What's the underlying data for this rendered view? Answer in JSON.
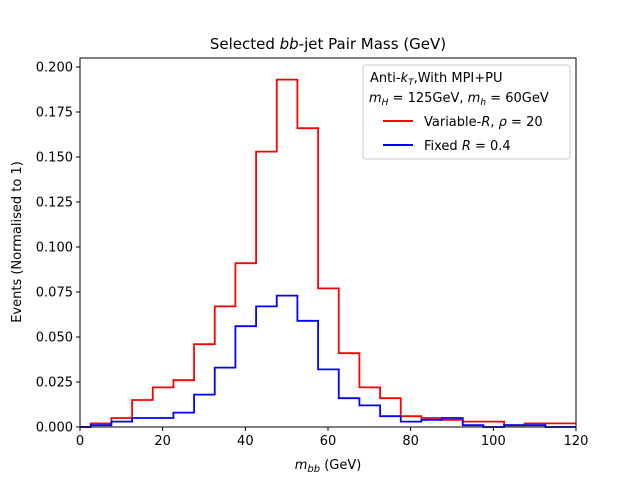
{
  "chart_data": {
    "type": "line",
    "style": "step-histogram",
    "title_parts": [
      "Selected ",
      "bb",
      "-jet Pair Mass (GeV)"
    ],
    "xlabel_parts": [
      "m",
      "bb",
      " (GeV)"
    ],
    "ylabel": "Events (Normalised to 1)",
    "xlim": [
      0,
      120
    ],
    "ylim": [
      0,
      0.205
    ],
    "x_ticks": [
      0,
      20,
      40,
      60,
      80,
      100,
      120
    ],
    "x_tick_labels": [
      "0",
      "20",
      "40",
      "60",
      "80",
      "100",
      "120"
    ],
    "y_ticks": [
      0,
      0.025,
      0.05,
      0.075,
      0.1,
      0.125,
      0.15,
      0.175,
      0.2
    ],
    "y_tick_labels": [
      "0.000",
      "0.025",
      "0.050",
      "0.075",
      "0.100",
      "0.125",
      "0.150",
      "0.175",
      "0.200"
    ],
    "grid": false,
    "legend": {
      "position": "top-right",
      "header_line1": [
        "Anti-",
        "k",
        "T",
        ",With MPI+PU"
      ],
      "header_line2": [
        "m",
        "H",
        " = 125GeV, ",
        "m",
        "h",
        " = 60GeV"
      ],
      "entries": [
        {
          "series": 0,
          "label_parts": [
            "Variable-",
            "R",
            ", ",
            "ρ",
            " = 20"
          ]
        },
        {
          "series": 1,
          "label_parts": [
            "Fixed ",
            "R",
            " = 0.4"
          ]
        }
      ]
    },
    "bin_edges": [
      0,
      2.6,
      7.6,
      12.6,
      17.6,
      22.6,
      27.6,
      32.6,
      37.6,
      42.6,
      47.6,
      52.6,
      57.6,
      62.6,
      67.6,
      72.6,
      77.6,
      82.6,
      87.6,
      92.6,
      97.6,
      102.6,
      107.6,
      112.6,
      120
    ],
    "series": [
      {
        "name": "Variable-R, rho=20",
        "color": "#ff0000",
        "values": [
          0.0,
          0.002,
          0.005,
          0.015,
          0.022,
          0.026,
          0.046,
          0.067,
          0.091,
          0.153,
          0.193,
          0.166,
          0.077,
          0.041,
          0.022,
          0.016,
          0.006,
          0.005,
          0.004,
          0.003,
          0.003,
          0.001,
          0.002,
          0.002
        ]
      },
      {
        "name": "Fixed R=0.4",
        "color": "#0000ff",
        "values": [
          0.0,
          0.001,
          0.003,
          0.005,
          0.005,
          0.008,
          0.018,
          0.033,
          0.056,
          0.067,
          0.073,
          0.059,
          0.032,
          0.016,
          0.012,
          0.006,
          0.003,
          0.004,
          0.005,
          0.001,
          0.0,
          0.001,
          0.001,
          0.0
        ]
      }
    ]
  }
}
